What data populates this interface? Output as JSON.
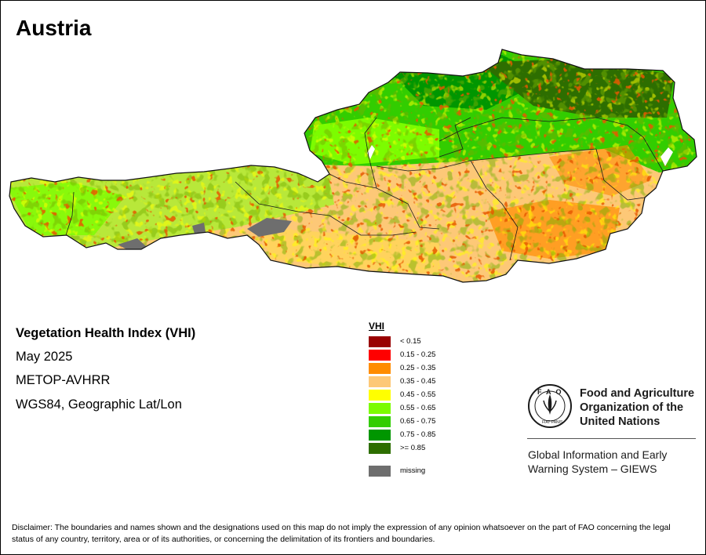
{
  "title": "Austria",
  "info": {
    "index_name": "Vegetation Health Index (VHI)",
    "period": "May 2025",
    "sensor": "METOP-AVHRR",
    "projection": "WGS84, Geographic Lat/Lon"
  },
  "legend": {
    "title": "VHI",
    "classes": [
      {
        "label": "< 0.15",
        "color": "#990000"
      },
      {
        "label": "0.15 - 0.25",
        "color": "#ff0000"
      },
      {
        "label": "0.25 - 0.35",
        "color": "#ff8c00"
      },
      {
        "label": "0.35 - 0.45",
        "color": "#fdc877"
      },
      {
        "label": "0.45 - 0.55",
        "color": "#ffff00"
      },
      {
        "label": "0.55 - 0.65",
        "color": "#7cfc00"
      },
      {
        "label": "0.65 - 0.75",
        "color": "#32cd00"
      },
      {
        "label": "0.75 - 0.85",
        "color": "#009600"
      },
      {
        "label": ">= 0.85",
        "color": "#2d6e00"
      }
    ],
    "missing": {
      "label": "missing",
      "color": "#6e6e6e"
    }
  },
  "organization": {
    "name_lines": [
      "Food and Agriculture",
      "Organization of the",
      "United Nations"
    ],
    "logo_letters": "FAO",
    "logo_motto": "FIAT PANIS",
    "program_lines": [
      "Global Information and Early",
      "Warning System – GIEWS"
    ]
  },
  "disclaimer": "Disclaimer: The boundaries and names shown and the designations used on this map do not imply the expression of any opinion whatsoever on the part of FAO concerning the legal status of any country, territory, area or of its authorities, or concerning the delimitation of its frontiers and boundaries."
}
